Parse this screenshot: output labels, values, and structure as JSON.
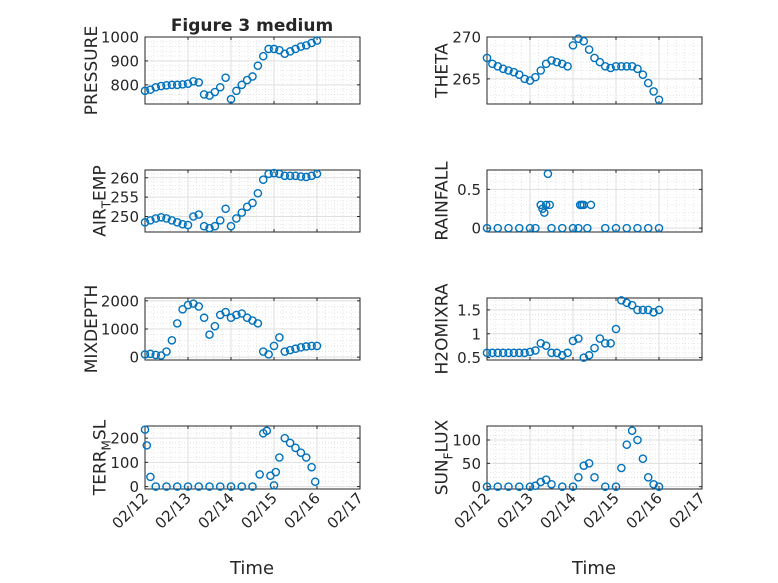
{
  "figure": {
    "title": "Figure 3 medium",
    "xlabel": "Time",
    "x_ticklabels": [
      "02/12",
      "02/13",
      "02/14",
      "02/15",
      "02/16",
      "02/17"
    ],
    "marker_color": "#0072bd",
    "axes_color": "#262626",
    "grid_color": "#dfdfdf"
  },
  "chart_data": [
    {
      "type": "scatter",
      "ylabel": "PRESSURE",
      "ylabel_sub": "",
      "ylabel_tail": "",
      "xlim": [
        "02/12",
        "02/17"
      ],
      "ylim": [
        720,
        1000
      ],
      "yticks": [
        800,
        900,
        1000
      ],
      "x": [
        "02/12 00:00",
        "02/12 03:00",
        "02/12 06:00",
        "02/12 09:00",
        "02/12 12:00",
        "02/12 15:00",
        "02/12 18:00",
        "02/12 21:00",
        "02/13 00:00",
        "02/13 03:00",
        "02/13 06:00",
        "02/13 09:00",
        "02/13 12:00",
        "02/13 15:00",
        "02/13 18:00",
        "02/13 21:00",
        "02/14 00:00",
        "02/14 03:00",
        "02/14 06:00",
        "02/14 09:00",
        "02/14 12:00",
        "02/14 15:00",
        "02/14 18:00",
        "02/14 21:00",
        "02/15 00:00",
        "02/15 03:00",
        "02/15 06:00",
        "02/15 09:00",
        "02/15 12:00",
        "02/15 15:00",
        "02/15 18:00",
        "02/15 21:00",
        "02/16 00:00"
      ],
      "y": [
        775,
        780,
        790,
        795,
        798,
        800,
        800,
        802,
        805,
        815,
        810,
        760,
        755,
        770,
        790,
        830,
        740,
        775,
        800,
        820,
        835,
        880,
        920,
        950,
        950,
        945,
        930,
        940,
        950,
        960,
        965,
        975,
        985
      ]
    },
    {
      "type": "scatter",
      "ylabel": "THETA",
      "ylabel_sub": "",
      "ylabel_tail": "",
      "xlim": [
        "02/12",
        "02/17"
      ],
      "ylim": [
        262,
        270
      ],
      "yticks": [
        265,
        270
      ],
      "x": [
        "02/12 00:00",
        "02/12 03:00",
        "02/12 06:00",
        "02/12 09:00",
        "02/12 12:00",
        "02/12 15:00",
        "02/12 18:00",
        "02/12 21:00",
        "02/13 00:00",
        "02/13 03:00",
        "02/13 06:00",
        "02/13 09:00",
        "02/13 12:00",
        "02/13 15:00",
        "02/13 18:00",
        "02/13 21:00",
        "02/14 00:00",
        "02/14 03:00",
        "02/14 06:00",
        "02/14 09:00",
        "02/14 12:00",
        "02/14 15:00",
        "02/14 18:00",
        "02/14 21:00",
        "02/15 00:00",
        "02/15 03:00",
        "02/15 06:00",
        "02/15 09:00",
        "02/15 12:00",
        "02/15 15:00",
        "02/15 18:00",
        "02/15 21:00",
        "02/16 00:00"
      ],
      "y": [
        267.5,
        266.8,
        266.5,
        266.2,
        266.0,
        265.8,
        265.5,
        265.0,
        264.8,
        265.2,
        266.0,
        266.8,
        267.2,
        267.0,
        266.8,
        266.5,
        269.0,
        269.8,
        269.5,
        268.5,
        267.5,
        267.0,
        266.5,
        266.3,
        266.5,
        266.5,
        266.5,
        266.5,
        266.2,
        265.5,
        264.5,
        263.5,
        262.5
      ]
    },
    {
      "type": "scatter",
      "ylabel": "AIR",
      "ylabel_sub": "T",
      "ylabel_tail": "EMP",
      "xlim": [
        "02/12",
        "02/17"
      ],
      "ylim": [
        246,
        262
      ],
      "yticks": [
        250,
        255,
        260
      ],
      "x": [
        "02/12 00:00",
        "02/12 03:00",
        "02/12 06:00",
        "02/12 09:00",
        "02/12 12:00",
        "02/12 15:00",
        "02/12 18:00",
        "02/12 21:00",
        "02/13 00:00",
        "02/13 03:00",
        "02/13 06:00",
        "02/13 09:00",
        "02/13 12:00",
        "02/13 15:00",
        "02/13 18:00",
        "02/13 21:00",
        "02/14 00:00",
        "02/14 03:00",
        "02/14 06:00",
        "02/14 09:00",
        "02/14 12:00",
        "02/14 15:00",
        "02/14 18:00",
        "02/14 21:00",
        "02/15 00:00",
        "02/15 03:00",
        "02/15 06:00",
        "02/15 09:00",
        "02/15 12:00",
        "02/15 15:00",
        "02/15 18:00",
        "02/15 21:00",
        "02/16 00:00"
      ],
      "y": [
        248.5,
        249.0,
        249.5,
        249.8,
        249.5,
        249.0,
        248.5,
        248.0,
        247.8,
        250.0,
        250.5,
        247.5,
        247.0,
        247.5,
        249.0,
        252.0,
        247.5,
        249.5,
        251.0,
        252.5,
        253.5,
        256.0,
        259.5,
        261.0,
        261.2,
        261.0,
        260.5,
        260.5,
        260.5,
        260.3,
        260.2,
        260.5,
        261.0
      ]
    },
    {
      "type": "scatter",
      "ylabel": "RAINFALL",
      "ylabel_sub": "",
      "ylabel_tail": "",
      "xlim": [
        "02/12",
        "02/17"
      ],
      "ylim": [
        -0.05,
        0.75
      ],
      "yticks": [
        0,
        0.5
      ],
      "ytick_labels": [
        "0",
        "0.5"
      ],
      "x": [
        "02/12 00:00",
        "02/12 06:00",
        "02/12 12:00",
        "02/12 18:00",
        "02/13 00:00",
        "02/13 03:00",
        "02/13 06:00",
        "02/13 07:00",
        "02/13 08:00",
        "02/13 09:00",
        "02/13 10:00",
        "02/13 11:00",
        "02/13 12:00",
        "02/13 18:00",
        "02/14 00:00",
        "02/14 03:00",
        "02/14 04:00",
        "02/14 05:00",
        "02/14 06:00",
        "02/14 08:00",
        "02/14 10:00",
        "02/14 18:00",
        "02/15 00:00",
        "02/15 06:00",
        "02/15 12:00",
        "02/15 18:00",
        "02/16 00:00"
      ],
      "y": [
        0,
        0,
        0,
        0,
        0,
        0,
        0.3,
        0.25,
        0.2,
        0.3,
        0.7,
        0.3,
        0,
        0,
        0,
        0,
        0.3,
        0.3,
        0.3,
        0,
        0.3,
        0,
        0,
        0,
        0,
        0,
        0
      ]
    },
    {
      "type": "scatter",
      "ylabel": "MIXDEPTH",
      "ylabel_sub": "",
      "ylabel_tail": "",
      "xlim": [
        "02/12",
        "02/17"
      ],
      "ylim": [
        -100,
        2100
      ],
      "yticks": [
        0,
        1000,
        2000
      ],
      "x": [
        "02/12 00:00",
        "02/12 03:00",
        "02/12 06:00",
        "02/12 09:00",
        "02/12 12:00",
        "02/12 15:00",
        "02/12 18:00",
        "02/12 21:00",
        "02/13 00:00",
        "02/13 03:00",
        "02/13 06:00",
        "02/13 09:00",
        "02/13 12:00",
        "02/13 15:00",
        "02/13 18:00",
        "02/13 21:00",
        "02/14 00:00",
        "02/14 03:00",
        "02/14 06:00",
        "02/14 09:00",
        "02/14 12:00",
        "02/14 15:00",
        "02/14 18:00",
        "02/14 21:00",
        "02/15 00:00",
        "02/15 03:00",
        "02/15 06:00",
        "02/15 09:00",
        "02/15 12:00",
        "02/15 15:00",
        "02/15 18:00",
        "02/15 21:00",
        "02/16 00:00"
      ],
      "y": [
        100,
        120,
        80,
        60,
        200,
        600,
        1200,
        1700,
        1850,
        1900,
        1800,
        1400,
        800,
        1100,
        1500,
        1600,
        1400,
        1500,
        1550,
        1400,
        1300,
        1200,
        200,
        100,
        400,
        700,
        200,
        250,
        300,
        350,
        380,
        400,
        400
      ]
    },
    {
      "type": "scatter",
      "ylabel": "H2OMIXRA",
      "ylabel_sub": "",
      "ylabel_tail": "",
      "xlim": [
        "02/12",
        "02/17"
      ],
      "ylim": [
        0.45,
        1.75
      ],
      "yticks": [
        0.5,
        1,
        1.5
      ],
      "ytick_labels": [
        "0.5",
        "1",
        "1.5"
      ],
      "x": [
        "02/12 00:00",
        "02/12 03:00",
        "02/12 06:00",
        "02/12 09:00",
        "02/12 12:00",
        "02/12 15:00",
        "02/12 18:00",
        "02/12 21:00",
        "02/13 00:00",
        "02/13 03:00",
        "02/13 06:00",
        "02/13 09:00",
        "02/13 12:00",
        "02/13 15:00",
        "02/13 18:00",
        "02/13 21:00",
        "02/14 00:00",
        "02/14 03:00",
        "02/14 06:00",
        "02/14 09:00",
        "02/14 12:00",
        "02/14 15:00",
        "02/14 18:00",
        "02/14 21:00",
        "02/15 00:00",
        "02/15 03:00",
        "02/15 06:00",
        "02/15 09:00",
        "02/15 12:00",
        "02/15 15:00",
        "02/15 18:00",
        "02/15 21:00",
        "02/16 00:00"
      ],
      "y": [
        0.6,
        0.6,
        0.6,
        0.6,
        0.6,
        0.6,
        0.6,
        0.6,
        0.62,
        0.65,
        0.8,
        0.75,
        0.6,
        0.6,
        0.55,
        0.6,
        0.85,
        0.9,
        0.5,
        0.55,
        0.7,
        0.9,
        0.8,
        0.8,
        1.1,
        1.7,
        1.65,
        1.6,
        1.5,
        1.5,
        1.5,
        1.45,
        1.5
      ]
    },
    {
      "type": "scatter",
      "ylabel": "TERR",
      "ylabel_sub": "M",
      "ylabel_tail": "SL",
      "xlim": [
        "02/12",
        "02/17"
      ],
      "ylim": [
        -10,
        250
      ],
      "yticks": [
        0,
        100,
        200
      ],
      "x": [
        "02/12 00:00",
        "02/12 01:00",
        "02/12 03:00",
        "02/12 06:00",
        "02/12 12:00",
        "02/12 18:00",
        "02/13 00:00",
        "02/13 06:00",
        "02/13 12:00",
        "02/13 18:00",
        "02/14 00:00",
        "02/14 06:00",
        "02/14 12:00",
        "02/14 16:00",
        "02/14 18:00",
        "02/14 20:00",
        "02/14 22:00",
        "02/15 00:00",
        "02/15 01:00",
        "02/15 03:00",
        "02/15 06:00",
        "02/15 09:00",
        "02/15 12:00",
        "02/15 15:00",
        "02/15 18:00",
        "02/15 21:00",
        "02/15 23:00"
      ],
      "y": [
        235,
        170,
        40,
        0,
        0,
        0,
        0,
        0,
        0,
        0,
        0,
        0,
        0,
        50,
        220,
        230,
        45,
        5,
        60,
        120,
        200,
        180,
        160,
        140,
        120,
        80,
        20
      ]
    },
    {
      "type": "scatter",
      "ylabel": "SUN",
      "ylabel_sub": "F",
      "ylabel_tail": "LUX",
      "xlim": [
        "02/12",
        "02/17"
      ],
      "ylim": [
        -5,
        130
      ],
      "yticks": [
        0,
        50,
        100
      ],
      "x": [
        "02/12 00:00",
        "02/12 06:00",
        "02/12 12:00",
        "02/12 18:00",
        "02/13 00:00",
        "02/13 03:00",
        "02/13 06:00",
        "02/13 09:00",
        "02/13 12:00",
        "02/13 18:00",
        "02/14 00:00",
        "02/14 03:00",
        "02/14 06:00",
        "02/14 09:00",
        "02/14 12:00",
        "02/14 18:00",
        "02/15 00:00",
        "02/15 03:00",
        "02/15 06:00",
        "02/15 09:00",
        "02/15 12:00",
        "02/15 15:00",
        "02/15 18:00",
        "02/15 21:00",
        "02/16 00:00"
      ],
      "y": [
        0,
        0,
        0,
        0,
        0,
        2,
        10,
        15,
        5,
        0,
        0,
        20,
        45,
        50,
        20,
        0,
        0,
        40,
        90,
        120,
        100,
        60,
        20,
        5,
        0
      ]
    }
  ]
}
